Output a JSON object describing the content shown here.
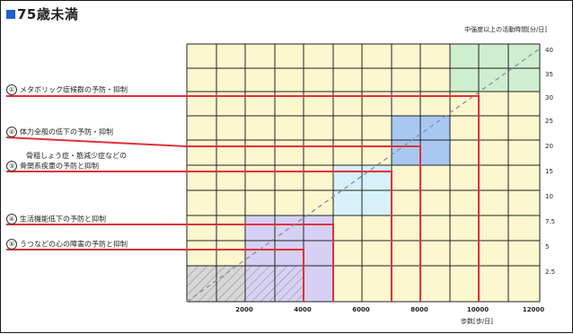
{
  "title": "75歳未満",
  "y_axis_title": "中強度以上の活動時間[分/日]",
  "x_axis_title": "歩数[歩/日]",
  "y_ticks": [
    "40",
    "35",
    "30",
    "25",
    "20",
    "15",
    "10",
    "7.5",
    "5",
    "2.5"
  ],
  "x_ticks": [
    "2000",
    "4000",
    "6000",
    "8000",
    "10000",
    "12000"
  ],
  "labels": [
    {
      "num": "①",
      "line1": "メタボリック症候群の予防・抑制",
      "line2": ""
    },
    {
      "num": "②",
      "line1": "体力全般の低下の予防・抑制",
      "line2": ""
    },
    {
      "num": "③",
      "line1": "骨粗しょう症・筋減少症などの",
      "line2": "骨関系疾患の予防と抑制"
    },
    {
      "num": "④",
      "line1": "生活機能低下の予防と抑制",
      "line2": ""
    },
    {
      "num": "⑤",
      "line1": "うつなどの心の障害の予防と抑制",
      "line2": ""
    }
  ],
  "colors": {
    "title_square": "#1f5fd1",
    "grid_fill": "#fdf7cf",
    "line": "#e0303a",
    "green": "#cfeecf",
    "blue": "#a8c8f2",
    "light_blue": "#d6f1fa",
    "purple": "#d6d0f4"
  }
}
